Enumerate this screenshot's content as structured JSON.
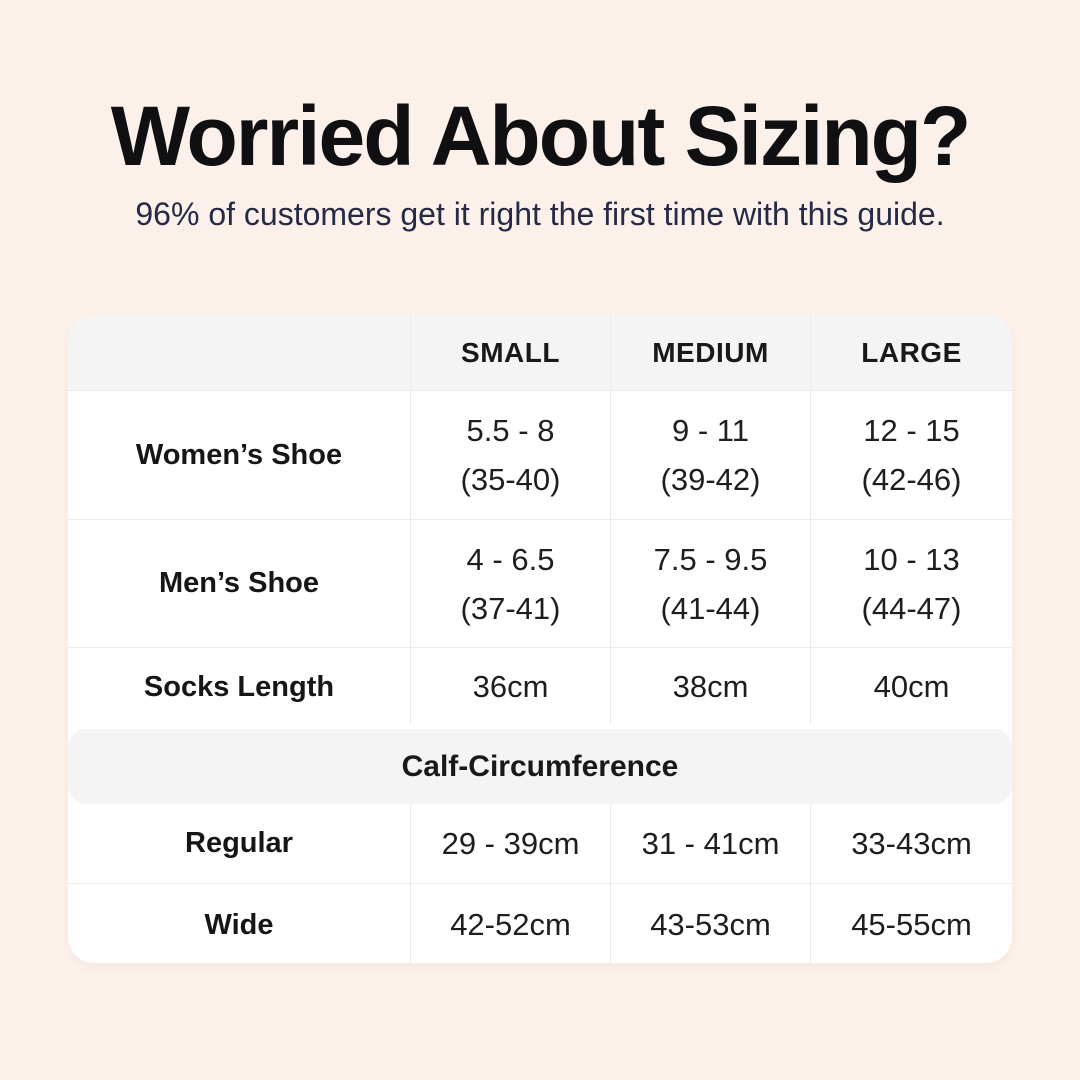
{
  "header": {
    "title": "Worried About Sizing?",
    "subtitle": "96% of customers get it right the first time with this guide."
  },
  "table": {
    "headers": [
      "",
      "SMALL",
      "MEDIUM",
      "LARGE"
    ],
    "rows": [
      {
        "label": "Women’s Shoe",
        "small": [
          "5.5 - 8",
          "(35-40)"
        ],
        "medium": [
          "9 - 11",
          "(39-42)"
        ],
        "large": [
          "12 - 15",
          "(42-46)"
        ]
      },
      {
        "label": "Men’s Shoe",
        "small": [
          "4 - 6.5",
          "(37-41)"
        ],
        "medium": [
          "7.5 - 9.5",
          "(41-44)"
        ],
        "large": [
          "10 - 13",
          "(44-47)"
        ]
      },
      {
        "label": "Socks Length",
        "small": "36cm",
        "medium": "38cm",
        "large": "40cm"
      }
    ],
    "section_title": "Calf-Circumference",
    "calf_rows": [
      {
        "label": "Regular",
        "small": "29 - 39cm",
        "medium": "31 - 41cm",
        "large": "33-43cm"
      },
      {
        "label": "Wide",
        "small": "42-52cm",
        "medium": "43-53cm",
        "large": "45-55cm"
      }
    ]
  },
  "chart_data": {
    "type": "table",
    "title": "Worried About Sizing?",
    "subtitle": "96% of customers get it right the first time with this guide.",
    "columns": [
      "",
      "SMALL",
      "MEDIUM",
      "LARGE"
    ],
    "rows": [
      [
        "Women’s Shoe",
        "5.5 - 8 (35-40)",
        "9 - 11 (39-42)",
        "12 - 15 (42-46)"
      ],
      [
        "Men’s Shoe",
        "4 - 6.5 (37-41)",
        "7.5 - 9.5 (41-44)",
        "10 - 13 (44-47)"
      ],
      [
        "Socks Length",
        "36cm",
        "38cm",
        "40cm"
      ],
      [
        "Calf-Circumference",
        "",
        "",
        ""
      ],
      [
        "Regular",
        "29 - 39cm",
        "31 - 41cm",
        "33-43cm"
      ],
      [
        "Wide",
        "42-52cm",
        "43-53cm",
        "45-55cm"
      ]
    ]
  },
  "colors": {
    "page_background": "#FCF1EA",
    "card_background": "#FFFFFF",
    "band_background": "#F4F4F5",
    "divider": "#EBEBED",
    "title_text": "#101013",
    "subtitle_text": "#262A45",
    "table_text": "#1C1C1E"
  }
}
